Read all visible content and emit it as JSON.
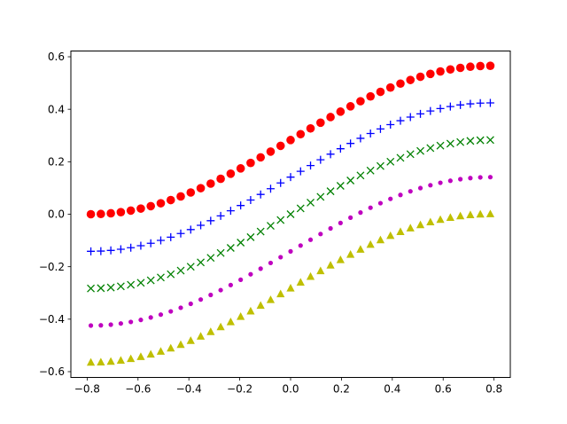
{
  "chart_data": {
    "type": "scatter",
    "title": "",
    "xlabel": "",
    "ylabel": "",
    "xlim": [
      -0.864,
      0.864
    ],
    "ylim": [
      -0.622,
      0.622
    ],
    "grid": false,
    "legend": null,
    "xticks": [
      -0.8,
      -0.6,
      -0.4,
      -0.2,
      0.0,
      0.2,
      0.4,
      0.6,
      0.8
    ],
    "xtick_labels": [
      "−0.8",
      "−0.6",
      "−0.4",
      "−0.2",
      "0.0",
      "0.2",
      "0.4",
      "0.6",
      "0.8"
    ],
    "yticks": [
      -0.6,
      -0.4,
      -0.2,
      0.0,
      0.2,
      0.4,
      0.6
    ],
    "ytick_labels": [
      "−0.6",
      "−0.4",
      "−0.2",
      "0.0",
      "0.2",
      "0.4",
      "0.6"
    ],
    "x": [
      -0.7854,
      -0.7461,
      -0.7069,
      -0.6676,
      -0.6283,
      -0.589,
      -0.5498,
      -0.5105,
      -0.4712,
      -0.432,
      -0.3927,
      -0.3534,
      -0.3142,
      -0.2749,
      -0.2356,
      -0.1963,
      -0.1571,
      -0.1178,
      -0.0785,
      -0.0393,
      0.0,
      0.0393,
      0.0785,
      0.1178,
      0.1571,
      0.1963,
      0.2356,
      0.2749,
      0.3142,
      0.3534,
      0.3927,
      0.432,
      0.4712,
      0.5105,
      0.5498,
      0.589,
      0.6283,
      0.6676,
      0.7069,
      0.7461,
      0.7854
    ],
    "series": [
      {
        "name": "red circles",
        "marker": "o",
        "color": "#ff0000",
        "values": [
          0.0,
          0.0009,
          0.0035,
          0.0078,
          0.0138,
          0.0215,
          0.0308,
          0.0417,
          0.054,
          0.0678,
          0.0828,
          0.0992,
          0.1166,
          0.135,
          0.1544,
          0.1746,
          0.1954,
          0.2168,
          0.2386,
          0.2606,
          0.2828,
          0.305,
          0.327,
          0.3488,
          0.3702,
          0.391,
          0.4112,
          0.4306,
          0.449,
          0.4664,
          0.4828,
          0.4978,
          0.5116,
          0.5239,
          0.5348,
          0.5441,
          0.5518,
          0.5578,
          0.5621,
          0.5647,
          0.5656
        ]
      },
      {
        "name": "blue plus",
        "marker": "+",
        "color": "#0000ff",
        "values": [
          -0.1414,
          -0.1405,
          -0.1379,
          -0.1336,
          -0.1276,
          -0.1199,
          -0.1106,
          -0.0997,
          -0.0874,
          -0.0736,
          -0.0586,
          -0.0422,
          -0.0248,
          -0.0064,
          0.013,
          0.0332,
          0.054,
          0.0754,
          0.0972,
          0.1192,
          0.1414,
          0.1636,
          0.1856,
          0.2074,
          0.2288,
          0.2496,
          0.2698,
          0.2892,
          0.3076,
          0.325,
          0.3414,
          0.3564,
          0.3702,
          0.3825,
          0.3934,
          0.4027,
          0.4104,
          0.4164,
          0.4207,
          0.4233,
          0.4242
        ]
      },
      {
        "name": "green x",
        "marker": "x",
        "color": "#008000",
        "values": [
          -0.2828,
          -0.2819,
          -0.2793,
          -0.275,
          -0.269,
          -0.2613,
          -0.252,
          -0.2411,
          -0.2288,
          -0.215,
          -0.2,
          -0.1836,
          -0.1662,
          -0.1478,
          -0.1284,
          -0.1082,
          -0.0874,
          -0.066,
          -0.0442,
          -0.0222,
          0.0,
          0.0222,
          0.0442,
          0.066,
          0.0874,
          0.1082,
          0.1284,
          0.1478,
          0.1662,
          0.1836,
          0.2,
          0.215,
          0.2288,
          0.2411,
          0.252,
          0.2613,
          0.269,
          0.275,
          0.2793,
          0.2819,
          0.2828
        ]
      },
      {
        "name": "magenta dots",
        "marker": ".",
        "color": "#bf00bf",
        "values": [
          -0.4243,
          -0.4234,
          -0.4208,
          -0.4165,
          -0.4105,
          -0.4028,
          -0.3935,
          -0.3826,
          -0.3703,
          -0.3565,
          -0.3415,
          -0.3251,
          -0.3077,
          -0.2893,
          -0.2699,
          -0.2497,
          -0.2289,
          -0.2075,
          -0.1857,
          -0.1637,
          -0.1415,
          -0.1193,
          -0.0973,
          -0.0755,
          -0.0541,
          -0.0333,
          -0.0131,
          0.0063,
          0.0247,
          0.0421,
          0.0585,
          0.0735,
          0.0873,
          0.0996,
          0.1105,
          0.1198,
          0.1275,
          0.1335,
          0.1378,
          0.1404,
          0.1413
        ]
      },
      {
        "name": "yellow triangles",
        "marker": "^",
        "color": "#bfbf00",
        "values": [
          -0.5657,
          -0.5648,
          -0.5622,
          -0.5579,
          -0.5519,
          -0.5442,
          -0.5349,
          -0.524,
          -0.5117,
          -0.4979,
          -0.4829,
          -0.4665,
          -0.4491,
          -0.4307,
          -0.4113,
          -0.3911,
          -0.3703,
          -0.3489,
          -0.3271,
          -0.3051,
          -0.2829,
          -0.2607,
          -0.2387,
          -0.2169,
          -0.1955,
          -0.1747,
          -0.1545,
          -0.1351,
          -0.1167,
          -0.0993,
          -0.0829,
          -0.0679,
          -0.0541,
          -0.0418,
          -0.0309,
          -0.0216,
          -0.0139,
          -0.0079,
          -0.0036,
          -0.001,
          -0.0001
        ]
      }
    ]
  }
}
